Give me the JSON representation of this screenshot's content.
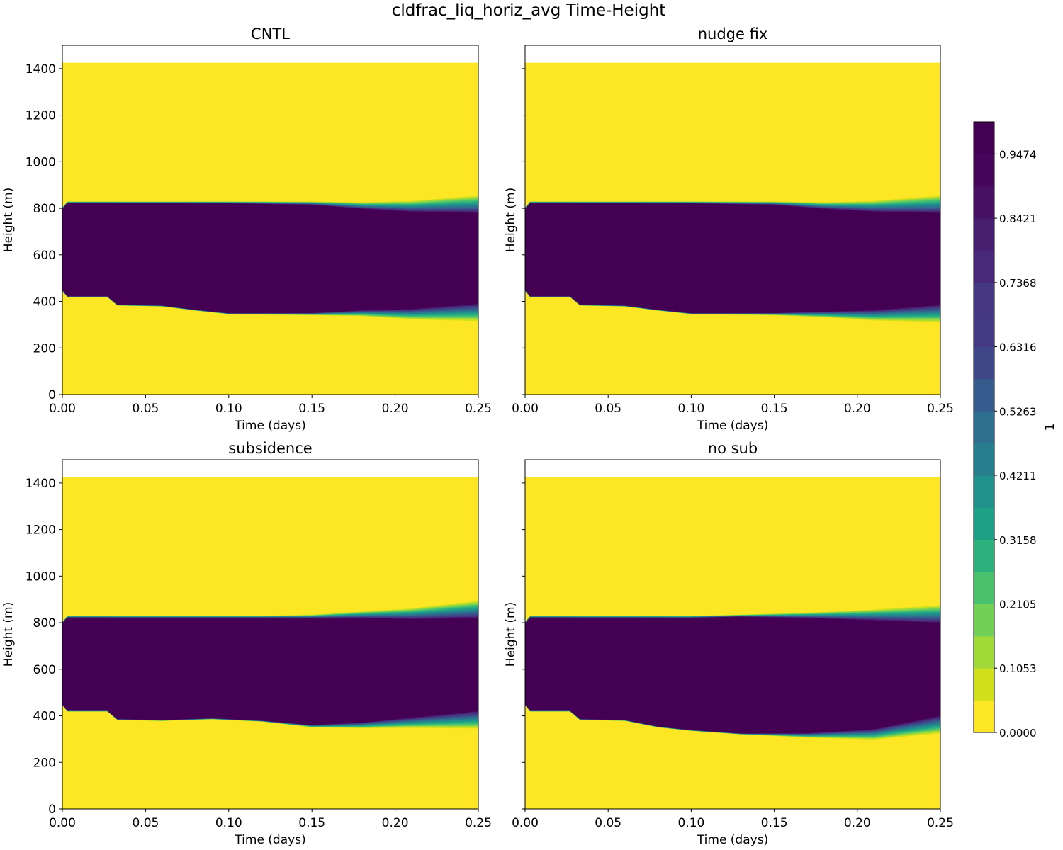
{
  "figure": {
    "title": "cldfrac_liq_horiz_avg Time-Height"
  },
  "chart_data": {
    "type": "heatmap",
    "title": "cldfrac_liq_horiz_avg Time-Height",
    "xlabel": "Time (days)",
    "ylabel": "Height (m)",
    "xlim": [
      0.0,
      0.25
    ],
    "ylim": [
      0,
      1500
    ],
    "data_top": 1425,
    "xticks": [
      "0.00",
      "0.05",
      "0.10",
      "0.15",
      "0.20",
      "0.25"
    ],
    "yticks": [
      "0",
      "200",
      "400",
      "600",
      "800",
      "1000",
      "1200",
      "1400"
    ],
    "colorbar": {
      "label": "1",
      "range": [
        0,
        1
      ],
      "ticks": [
        "0.0000",
        "0.1053",
        "0.2105",
        "0.3158",
        "0.4211",
        "0.5263",
        "0.6316",
        "0.7368",
        "0.8421",
        "0.9474"
      ],
      "levels": 19,
      "colors": [
        "#fde725",
        "#d0e11c",
        "#a0da39",
        "#73d056",
        "#4ac16d",
        "#2db27d",
        "#1fa187",
        "#21918c",
        "#277f8e",
        "#2e6e8e",
        "#365c8d",
        "#3f4788",
        "#463480",
        "#481f70",
        "#440154"
      ]
    },
    "panels": [
      {
        "name": "CNTL",
        "cloud": [
          {
            "t": 0.0,
            "base": 445,
            "top": 805
          },
          {
            "t": 0.003,
            "base": 418,
            "top": 830
          },
          {
            "t": 0.027,
            "base": 418,
            "top": 830
          },
          {
            "t": 0.033,
            "base": 382,
            "top": 830
          },
          {
            "t": 0.06,
            "base": 378,
            "top": 830
          },
          {
            "t": 0.08,
            "base": 360,
            "top": 830
          },
          {
            "t": 0.1,
            "base": 345,
            "top": 830
          },
          {
            "t": 0.15,
            "base": 340,
            "top": 830
          },
          {
            "t": 0.18,
            "base": 335,
            "top": 828
          },
          {
            "t": 0.21,
            "base": 320,
            "top": 835
          },
          {
            "t": 0.25,
            "base": 310,
            "top": 860
          }
        ]
      },
      {
        "name": "nudge fix",
        "cloud": [
          {
            "t": 0.0,
            "base": 445,
            "top": 805
          },
          {
            "t": 0.003,
            "base": 418,
            "top": 830
          },
          {
            "t": 0.027,
            "base": 418,
            "top": 830
          },
          {
            "t": 0.033,
            "base": 382,
            "top": 830
          },
          {
            "t": 0.06,
            "base": 378,
            "top": 830
          },
          {
            "t": 0.08,
            "base": 360,
            "top": 830
          },
          {
            "t": 0.1,
            "base": 345,
            "top": 830
          },
          {
            "t": 0.15,
            "base": 340,
            "top": 830
          },
          {
            "t": 0.18,
            "base": 330,
            "top": 828
          },
          {
            "t": 0.21,
            "base": 315,
            "top": 835
          },
          {
            "t": 0.25,
            "base": 305,
            "top": 860
          }
        ]
      },
      {
        "name": "subsidence",
        "cloud": [
          {
            "t": 0.0,
            "base": 445,
            "top": 805
          },
          {
            "t": 0.003,
            "base": 418,
            "top": 830
          },
          {
            "t": 0.027,
            "base": 418,
            "top": 830
          },
          {
            "t": 0.033,
            "base": 382,
            "top": 830
          },
          {
            "t": 0.06,
            "base": 378,
            "top": 830
          },
          {
            "t": 0.09,
            "base": 385,
            "top": 830
          },
          {
            "t": 0.12,
            "base": 375,
            "top": 830
          },
          {
            "t": 0.15,
            "base": 350,
            "top": 835
          },
          {
            "t": 0.18,
            "base": 345,
            "top": 850
          },
          {
            "t": 0.21,
            "base": 345,
            "top": 865
          },
          {
            "t": 0.25,
            "base": 340,
            "top": 900
          }
        ]
      },
      {
        "name": "no sub",
        "cloud": [
          {
            "t": 0.0,
            "base": 445,
            "top": 805
          },
          {
            "t": 0.003,
            "base": 418,
            "top": 830
          },
          {
            "t": 0.027,
            "base": 418,
            "top": 830
          },
          {
            "t": 0.033,
            "base": 382,
            "top": 830
          },
          {
            "t": 0.06,
            "base": 378,
            "top": 830
          },
          {
            "t": 0.08,
            "base": 350,
            "top": 830
          },
          {
            "t": 0.1,
            "base": 335,
            "top": 830
          },
          {
            "t": 0.13,
            "base": 320,
            "top": 835
          },
          {
            "t": 0.17,
            "base": 305,
            "top": 845
          },
          {
            "t": 0.21,
            "base": 295,
            "top": 860
          },
          {
            "t": 0.25,
            "base": 320,
            "top": 880
          }
        ]
      }
    ]
  }
}
